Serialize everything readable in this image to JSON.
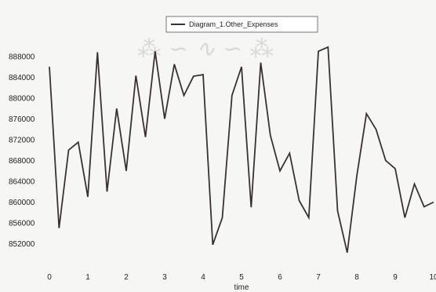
{
  "chart_data": {
    "type": "line",
    "title": "",
    "xlabel": "time",
    "ylabel": "",
    "xlim": [
      0,
      10
    ],
    "ylim": [
      848000,
      891000
    ],
    "grid": false,
    "legend_position": "top-center",
    "x_ticks": [
      "0",
      "1",
      "2",
      "3",
      "4",
      "5",
      "6",
      "7",
      "8",
      "9",
      "10"
    ],
    "y_ticks": [
      "852000",
      "856000",
      "860000",
      "864000",
      "868000",
      "872000",
      "876000",
      "880000",
      "884000",
      "888000"
    ],
    "series": [
      {
        "name": "Diagram_1.Other_Expenses",
        "color": "#3a3232",
        "x": [
          0,
          0.25,
          0.5,
          0.75,
          1,
          1.25,
          1.5,
          1.75,
          2,
          2.25,
          2.5,
          2.75,
          3,
          3.25,
          3.5,
          3.75,
          4,
          4.25,
          4.5,
          4.75,
          5,
          5.25,
          5.5,
          5.75,
          6,
          6.25,
          6.5,
          6.75,
          7,
          7.25,
          7.5,
          7.75,
          8,
          8.25,
          8.5,
          8.75,
          9,
          9.25,
          9.5,
          9.75,
          10
        ],
        "y": [
          886000,
          855000,
          870000,
          871500,
          861000,
          888800,
          862000,
          878000,
          866000,
          884300,
          872500,
          889000,
          876000,
          886500,
          880500,
          884200,
          884500,
          851800,
          857000,
          880500,
          886000,
          859000,
          886800,
          872800,
          866000,
          869400,
          860300,
          857000,
          889000,
          889800,
          858300,
          850300,
          865000,
          877000,
          874000,
          868000,
          866400,
          857000,
          863500,
          859100,
          860000
        ]
      }
    ]
  }
}
